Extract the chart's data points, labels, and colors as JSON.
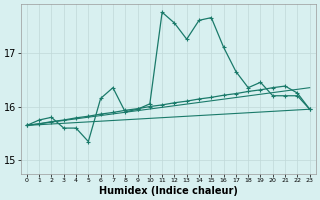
{
  "xlabel": "Humidex (Indice chaleur)",
  "bg_color": "#d8f0f0",
  "line_color": "#1a7a6a",
  "grid_color": "#c0d8d8",
  "x_ticks": [
    0,
    1,
    2,
    3,
    4,
    5,
    6,
    7,
    8,
    9,
    10,
    11,
    12,
    13,
    14,
    15,
    16,
    17,
    18,
    19,
    20,
    21,
    22,
    23
  ],
  "y_ticks": [
    15,
    16,
    17
  ],
  "xlim": [
    -0.5,
    23.5
  ],
  "ylim": [
    14.75,
    17.9
  ],
  "series1_x": [
    0,
    1,
    2,
    3,
    4,
    5,
    6,
    7,
    8,
    9,
    10,
    11,
    12,
    13,
    14,
    15,
    16,
    17,
    18,
    19,
    20,
    21,
    22,
    23
  ],
  "series1_y": [
    15.65,
    15.75,
    15.8,
    15.6,
    15.6,
    15.35,
    16.15,
    16.35,
    15.9,
    15.95,
    16.05,
    17.75,
    17.55,
    17.25,
    17.6,
    17.65,
    17.1,
    16.65,
    16.35,
    16.45,
    16.2,
    16.2,
    16.2,
    15.95
  ],
  "series2_x": [
    0,
    1,
    2,
    3,
    4,
    5,
    6,
    7,
    8,
    9,
    10,
    11,
    12,
    13,
    14,
    15,
    16,
    17,
    18,
    19,
    20,
    21,
    22,
    23
  ],
  "series2_y": [
    15.65,
    15.68,
    15.72,
    15.75,
    15.79,
    15.82,
    15.86,
    15.89,
    15.93,
    15.96,
    16.0,
    16.03,
    16.07,
    16.1,
    16.14,
    16.17,
    16.21,
    16.24,
    16.28,
    16.31,
    16.35,
    16.38,
    16.25,
    15.95
  ],
  "series3_x": [
    0,
    23
  ],
  "series3_y": [
    15.65,
    16.35
  ],
  "series4_x": [
    0,
    23
  ],
  "series4_y": [
    15.65,
    15.95
  ]
}
